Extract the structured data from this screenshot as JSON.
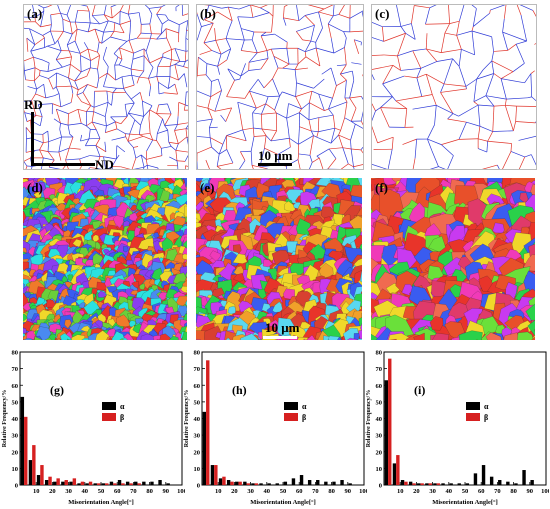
{
  "figure": {
    "gb_maps": [
      {
        "label": "(a)"
      },
      {
        "label": "(b)",
        "scale_bar": "10 μm"
      },
      {
        "label": "(c)"
      }
    ],
    "ipf_maps": [
      {
        "label": "(d)"
      },
      {
        "label": "(e)",
        "scale_bar": "10 μm"
      },
      {
        "label": "(f)"
      }
    ],
    "axes_labels": {
      "rd": "RD",
      "nd": "ND"
    },
    "colors": {
      "alpha": "#000000",
      "beta": "#d62020",
      "gb_blue": "#2f3bd6",
      "gb_red": "#e0342a"
    }
  },
  "chart_data": [
    {
      "type": "bar",
      "panel_label": "(g)",
      "xlabel": "Misorientation Angle[°]",
      "ylabel": "Relative Frequency/%",
      "xlim": [
        0,
        100
      ],
      "ylim": [
        0,
        80
      ],
      "xticks": [
        10,
        20,
        30,
        40,
        50,
        60,
        70,
        80,
        90,
        100
      ],
      "yticks": [
        0,
        10,
        20,
        30,
        40,
        50,
        60,
        70,
        80
      ],
      "x": [
        2.5,
        7.5,
        12.5,
        17.5,
        22.5,
        27.5,
        32.5,
        37.5,
        42.5,
        47.5,
        52.5,
        57.5,
        62.5,
        67.5,
        72.5,
        77.5,
        82.5,
        87.5,
        92.5
      ],
      "series": [
        {
          "name": "α",
          "values": [
            53,
            15,
            6,
            3,
            2,
            2,
            2,
            1,
            1,
            1,
            1,
            2,
            3,
            2,
            2,
            2,
            2,
            3,
            1
          ]
        },
        {
          "name": "β",
          "values": [
            41,
            24,
            12,
            5,
            4,
            3,
            4,
            2,
            2,
            1,
            1,
            1,
            1,
            1,
            1,
            0,
            0,
            0,
            0
          ]
        }
      ],
      "legend": "top-center"
    },
    {
      "type": "bar",
      "panel_label": "(h)",
      "xlabel": "Misorientation Angle[°]",
      "ylabel": "Relative Frequency/%",
      "xlim": [
        0,
        100
      ],
      "ylim": [
        0,
        80
      ],
      "xticks": [
        10,
        20,
        30,
        40,
        50,
        60,
        70,
        80,
        90,
        100
      ],
      "yticks": [
        0,
        10,
        20,
        30,
        40,
        50,
        60,
        70,
        80
      ],
      "x": [
        2.5,
        7.5,
        12.5,
        17.5,
        22.5,
        27.5,
        32.5,
        37.5,
        42.5,
        47.5,
        52.5,
        57.5,
        62.5,
        67.5,
        72.5,
        77.5,
        82.5,
        87.5,
        92.5
      ],
      "series": [
        {
          "name": "α",
          "values": [
            44,
            12,
            4,
            3,
            2,
            2,
            1,
            1,
            1,
            1,
            2,
            4,
            6,
            3,
            3,
            2,
            2,
            3,
            1
          ]
        },
        {
          "name": "β",
          "values": [
            75,
            12,
            5,
            2,
            2,
            1,
            1,
            0,
            0,
            0,
            0,
            0,
            0,
            0,
            0,
            0,
            0,
            0,
            0
          ]
        }
      ],
      "legend": "top-center"
    },
    {
      "type": "bar",
      "panel_label": "(i)",
      "xlabel": "Misorientation Angle[°]",
      "ylabel": "Relative Frequency/%",
      "xlim": [
        0,
        100
      ],
      "ylim": [
        0,
        80
      ],
      "xticks": [
        10,
        20,
        30,
        40,
        50,
        60,
        70,
        80,
        90,
        100
      ],
      "yticks": [
        0,
        10,
        20,
        30,
        40,
        50,
        60,
        70,
        80
      ],
      "x": [
        2.5,
        7.5,
        12.5,
        17.5,
        22.5,
        27.5,
        32.5,
        37.5,
        42.5,
        47.5,
        52.5,
        57.5,
        62.5,
        67.5,
        72.5,
        77.5,
        82.5,
        87.5,
        92.5
      ],
      "series": [
        {
          "name": "α",
          "values": [
            63,
            13,
            3,
            2,
            1,
            1,
            1,
            1,
            1,
            1,
            1,
            7,
            12,
            5,
            3,
            2,
            1,
            9,
            3
          ]
        },
        {
          "name": "β",
          "values": [
            76,
            18,
            2,
            1,
            1,
            1,
            1,
            0,
            0,
            0,
            0,
            0,
            0,
            0,
            0,
            0,
            0,
            0,
            0
          ]
        }
      ],
      "legend": "top-center"
    }
  ]
}
